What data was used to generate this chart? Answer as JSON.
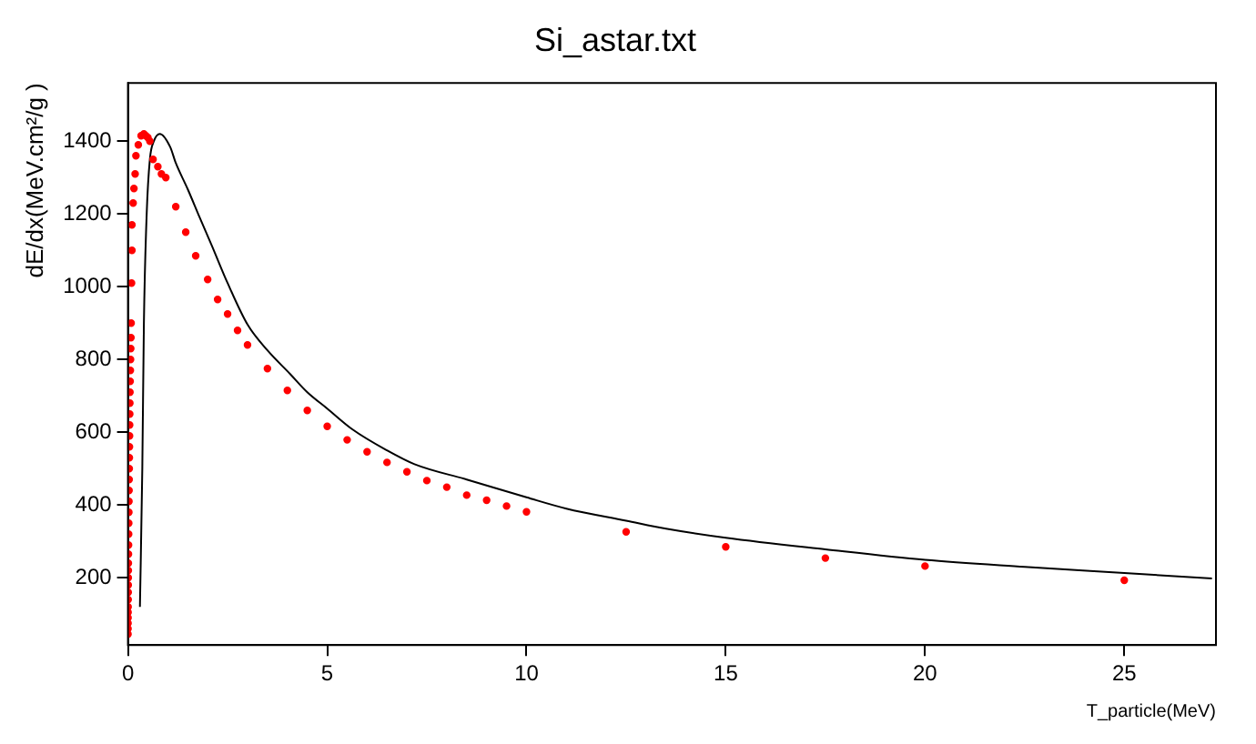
{
  "chart_data": {
    "type": "scatter",
    "title": "Si_astar.txt",
    "xlabel": "T_particle(MeV)",
    "ylabel": "dE/dx(MeV.cm²/g )",
    "xlim": [
      0,
      27.3
    ],
    "ylim": [
      15,
      1560
    ],
    "xticks": [
      0,
      5,
      10,
      15,
      20,
      25
    ],
    "yticks": [
      200,
      400,
      600,
      800,
      1000,
      1200,
      1400
    ],
    "grid": false,
    "legend": false,
    "series": [
      {
        "color": "#ff0000",
        "marker": "circle",
        "x": [
          0.001,
          0.0015,
          0.002,
          0.0025,
          0.003,
          0.004,
          0.005,
          0.006,
          0.007,
          0.008,
          0.009,
          0.01,
          0.0125,
          0.015,
          0.0175,
          0.02,
          0.0225,
          0.025,
          0.0275,
          0.03,
          0.0325,
          0.035,
          0.0375,
          0.04,
          0.0425,
          0.045,
          0.0475,
          0.05,
          0.055,
          0.06,
          0.065,
          0.07,
          0.075,
          0.08,
          0.09,
          0.1,
          0.1,
          0.13,
          0.15,
          0.18,
          0.2,
          0.26,
          0.33,
          0.4,
          0.45,
          0.5,
          0.55,
          0.63,
          0.75,
          0.84,
          0.95,
          1.2,
          1.45,
          1.7,
          2.0,
          2.25,
          2.5,
          2.75,
          3.0,
          3.5,
          4.0,
          4.5,
          5.0,
          5.5,
          6.0,
          6.5,
          7.0,
          7.5,
          8.0,
          8.5,
          9.0,
          9.5,
          10,
          12.5,
          15,
          17.5,
          20,
          25
        ],
        "values": [
          45,
          60,
          75,
          90,
          105,
          120,
          140,
          160,
          180,
          200,
          220,
          240,
          265,
          290,
          320,
          350,
          380,
          410,
          440,
          470,
          500,
          530,
          560,
          590,
          620,
          650,
          680,
          710,
          740,
          770,
          800,
          830,
          860,
          900,
          1010,
          1100,
          1170,
          1230,
          1270,
          1310,
          1360,
          1390,
          1415,
          1420,
          1415,
          1410,
          1400,
          1350,
          1330,
          1310,
          1300,
          1220,
          1150,
          1085,
          1020,
          965,
          925,
          880,
          840,
          775,
          715,
          660,
          616,
          579,
          546,
          517,
          491,
          467,
          449,
          427,
          413,
          397,
          381,
          326,
          285,
          254,
          232,
          193
        ]
      },
      {
        "type": "line",
        "color": "#000000",
        "marker": "none",
        "line_style": "solid",
        "x": [
          0.3,
          0.36,
          0.4,
          0.47,
          0.55,
          0.65,
          0.8,
          1.06,
          1.2,
          1.5,
          1.8,
          2.1,
          2.5,
          3,
          3.5,
          4.07,
          4.5,
          5,
          5.63,
          6.5,
          7.19,
          8.5,
          10,
          11,
          12.5,
          13.5,
          15,
          17.5,
          20,
          22.5,
          25,
          27.2
        ],
        "values": [
          120,
          500,
          900,
          1200,
          1350,
          1400,
          1420,
          1384,
          1340,
          1268,
          1190,
          1114,
          1010,
          896,
          825,
          760,
          710,
          665,
          608,
          550,
          512,
          470,
          421,
          390,
          357,
          335,
          310,
          278,
          249,
          230,
          213,
          198
        ]
      }
    ]
  }
}
